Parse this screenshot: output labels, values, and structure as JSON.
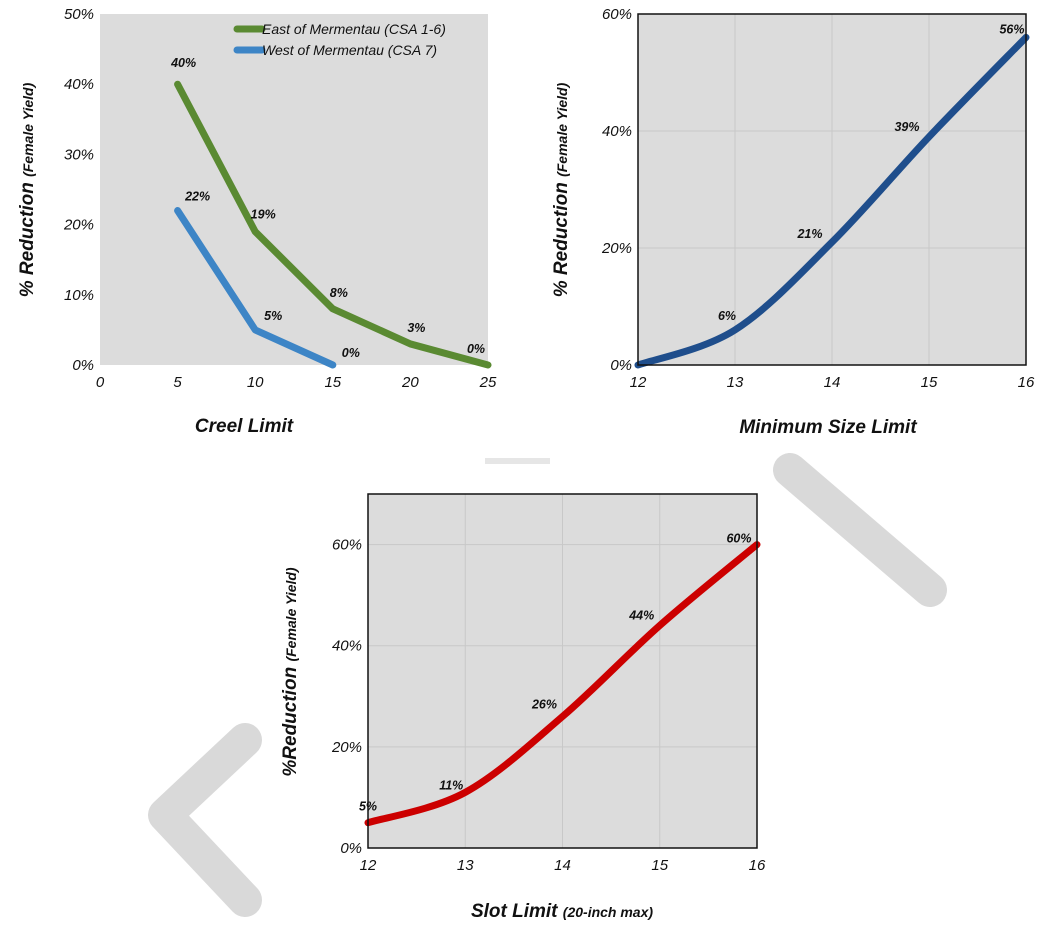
{
  "colors": {
    "east": "#5a8a32",
    "west": "#3d85c6",
    "minsize": "#1f4e8c",
    "slot": "#cc0000",
    "plot_bg": "#dcdcdc",
    "watermark": "#d9d9d9"
  },
  "chart_data": [
    {
      "type": "line",
      "xlabel": "Creel Limit",
      "ylabel_main": "% Reduction",
      "ylabel_sub": "(Female Yield)",
      "xlim": [
        0,
        25
      ],
      "ylim": [
        0,
        50
      ],
      "x_ticks": [
        "0",
        "5",
        "10",
        "15",
        "20",
        "25"
      ],
      "y_ticks": [
        "0%",
        "10%",
        "20%",
        "30%",
        "40%",
        "50%"
      ],
      "grid": false,
      "legend_position": "top-right",
      "series": [
        {
          "name": "East of Mermentau (CSA 1-6)",
          "x": [
            5,
            10,
            15,
            20,
            25
          ],
          "y": [
            40,
            19,
            8,
            3,
            0
          ],
          "labels": [
            "40%",
            "19%",
            "8%",
            "3%",
            "0%"
          ]
        },
        {
          "name": "West of Mermentau (CSA 7)",
          "x": [
            5,
            10,
            15
          ],
          "y": [
            22,
            5,
            0
          ],
          "labels": [
            "22%",
            "5%",
            "0%"
          ]
        }
      ]
    },
    {
      "type": "line",
      "xlabel": "Minimum Size Limit",
      "ylabel_main": "% Reduction",
      "ylabel_sub": "(Female Yield)",
      "xlim": [
        12,
        16
      ],
      "ylim": [
        0,
        60
      ],
      "x_ticks": [
        "12",
        "13",
        "14",
        "15",
        "16"
      ],
      "y_ticks": [
        "0%",
        "20%",
        "40%",
        "60%"
      ],
      "grid": true,
      "series": [
        {
          "x": [
            12,
            13,
            14,
            15,
            16
          ],
          "y": [
            0,
            6,
            21,
            39,
            56
          ],
          "labels": [
            "",
            "6%",
            "21%",
            "39%",
            "56%"
          ]
        }
      ]
    },
    {
      "type": "line",
      "xlabel": "Slot Limit",
      "xlabel_sub": "(20-inch max)",
      "ylabel_main": "%Reduction",
      "ylabel_sub": "(Female Yield)",
      "xlim": [
        12,
        16
      ],
      "ylim": [
        0,
        70
      ],
      "x_ticks": [
        "12",
        "13",
        "14",
        "15",
        "16"
      ],
      "y_ticks": [
        "0%",
        "20%",
        "40%",
        "60%"
      ],
      "grid": true,
      "series": [
        {
          "x": [
            12,
            13,
            14,
            15,
            16
          ],
          "y": [
            5,
            11,
            26,
            44,
            60
          ],
          "labels": [
            "5%",
            "11%",
            "26%",
            "44%",
            "60%"
          ]
        }
      ]
    }
  ]
}
